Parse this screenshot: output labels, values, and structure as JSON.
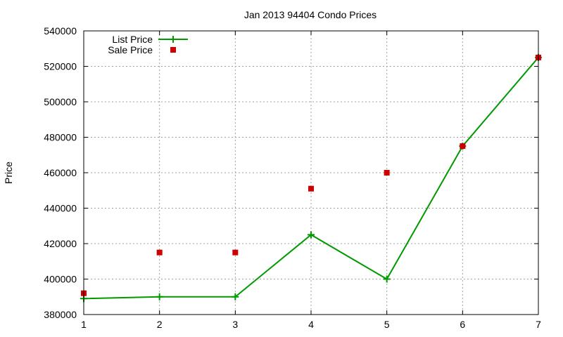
{
  "chart_data": {
    "type": "line",
    "title": "Jan 2013 94404 Condo Prices",
    "xlabel": "",
    "ylabel": "Price",
    "xlim": [
      1,
      7
    ],
    "ylim": [
      380000,
      540000
    ],
    "x_ticks": [
      "1",
      "2",
      "3",
      "4",
      "5",
      "6",
      "7"
    ],
    "y_ticks": [
      "380000",
      "400000",
      "420000",
      "440000",
      "460000",
      "480000",
      "500000",
      "520000",
      "540000"
    ],
    "grid": true,
    "legend_position": "top-left",
    "series": [
      {
        "name": "List Price",
        "style": "line-with-plus-markers",
        "color": "#009900",
        "x": [
          1,
          2,
          3,
          4,
          5,
          6,
          7
        ],
        "values": [
          389000,
          390000,
          390000,
          425000,
          400000,
          475000,
          525000
        ]
      },
      {
        "name": "Sale Price",
        "style": "square-points",
        "color": "#cc0000",
        "x": [
          1,
          2,
          3,
          4,
          5,
          6,
          7
        ],
        "values": [
          392000,
          415000,
          415000,
          451000,
          460000,
          475000,
          525000
        ]
      }
    ]
  }
}
